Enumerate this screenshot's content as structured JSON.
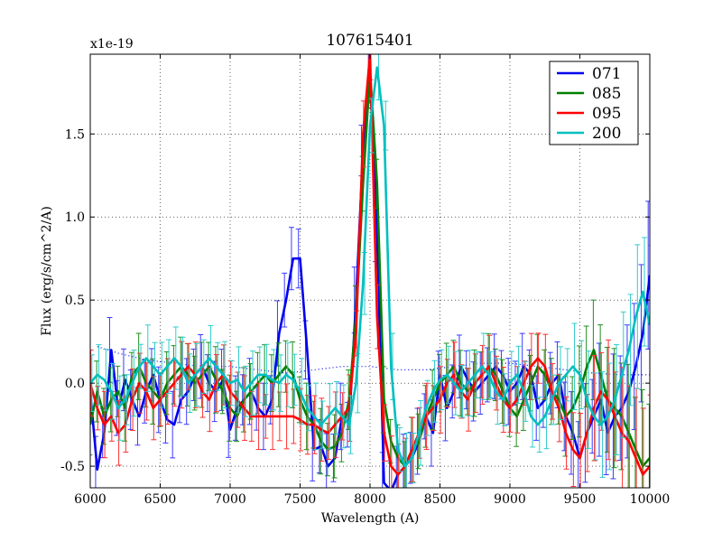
{
  "chart_data": {
    "type": "line",
    "title": "107615401",
    "xlabel": "Wavelength (A)",
    "ylabel": "Flux (erg/s/cm^2/A)",
    "y_offset_label": "x1e-19",
    "xlim": [
      6000,
      10000
    ],
    "ylim": [
      -0.63,
      1.98
    ],
    "xticks": [
      6000,
      6500,
      7000,
      7500,
      8000,
      8500,
      9000,
      9500,
      10000
    ],
    "xtick_labels": [
      "6000",
      "6500",
      "7000",
      "7500",
      "8000",
      "8500",
      "9000",
      "9500",
      "10000"
    ],
    "yticks": [
      -0.5,
      0.0,
      0.5,
      1.0,
      1.5
    ],
    "ytick_labels": [
      "-0.5",
      "0.0",
      "0.5",
      "1.0",
      "1.5"
    ],
    "grid": true,
    "legend": "top-right",
    "x": [
      6000,
      6050,
      6100,
      6150,
      6200,
      6250,
      6300,
      6350,
      6400,
      6450,
      6500,
      6550,
      6600,
      6650,
      6700,
      6750,
      6800,
      6850,
      6900,
      6950,
      7000,
      7050,
      7100,
      7150,
      7200,
      7250,
      7300,
      7350,
      7400,
      7450,
      7500,
      7550,
      7600,
      7650,
      7700,
      7750,
      7800,
      7850,
      7900,
      7950,
      8000,
      8050,
      8100,
      8150,
      8200,
      8250,
      8300,
      8350,
      8400,
      8450,
      8500,
      8550,
      8600,
      8650,
      8700,
      8750,
      8800,
      8850,
      8900,
      8950,
      9000,
      9050,
      9100,
      9150,
      9200,
      9250,
      9300,
      9350,
      9400,
      9450,
      9500,
      9550,
      9600,
      9650,
      9700,
      9750,
      9800,
      9850,
      9900,
      9950,
      10000
    ],
    "series": [
      {
        "name": "071",
        "color": "#0000ee",
        "values": [
          -0.05,
          -0.52,
          -0.3,
          0.2,
          -0.15,
          0.02,
          -0.1,
          -0.2,
          -0.05,
          0.05,
          -0.1,
          -0.22,
          -0.25,
          -0.1,
          -0.05,
          0.05,
          0.1,
          0.0,
          -0.05,
          0.02,
          -0.28,
          -0.15,
          -0.1,
          -0.05,
          -0.15,
          -0.2,
          -0.1,
          0.3,
          0.5,
          0.75,
          0.75,
          0.2,
          -0.4,
          -0.38,
          -0.5,
          -0.45,
          -0.2,
          -0.25,
          0.5,
          1.4,
          1.85,
          0.9,
          -0.6,
          -0.65,
          -0.55,
          -0.5,
          -0.45,
          -0.35,
          -0.2,
          -0.3,
          0.05,
          -0.15,
          -0.05,
          0.1,
          0.02,
          -0.05,
          0.0,
          0.05,
          0.1,
          0.05,
          -0.05,
          0.0,
          0.1,
          0.05,
          -0.15,
          -0.1,
          0.0,
          0.05,
          -0.2,
          -0.3,
          -0.45,
          -0.3,
          -0.2,
          -0.1,
          -0.3,
          -0.2,
          -0.15,
          -0.05,
          0.1,
          0.3,
          0.65
        ]
      },
      {
        "name": "085",
        "color": "#008000",
        "values": [
          -0.25,
          -0.05,
          -0.2,
          -0.1,
          -0.05,
          -0.15,
          0.05,
          0.1,
          0.0,
          -0.05,
          -0.1,
          0.0,
          0.05,
          0.1,
          0.05,
          0.0,
          0.05,
          0.1,
          0.02,
          -0.05,
          -0.15,
          -0.2,
          -0.1,
          -0.05,
          0.0,
          0.05,
          0.0,
          0.05,
          0.1,
          0.05,
          -0.1,
          -0.2,
          -0.25,
          -0.35,
          -0.4,
          -0.38,
          -0.3,
          -0.1,
          0.4,
          1.2,
          1.88,
          1.2,
          -0.1,
          -0.35,
          -0.45,
          -0.5,
          -0.4,
          -0.35,
          -0.2,
          -0.1,
          0.0,
          0.05,
          0.1,
          0.0,
          -0.05,
          0.0,
          0.05,
          0.1,
          0.05,
          -0.05,
          -0.15,
          -0.2,
          -0.1,
          0.0,
          0.1,
          0.05,
          -0.05,
          -0.1,
          -0.2,
          -0.15,
          -0.05,
          0.1,
          0.2,
          0.05,
          -0.1,
          -0.15,
          -0.2,
          -0.3,
          -0.4,
          -0.5,
          -0.45
        ]
      },
      {
        "name": "095",
        "color": "#ff0000",
        "values": [
          0.0,
          -0.15,
          -0.25,
          -0.2,
          -0.3,
          -0.25,
          -0.1,
          0.0,
          -0.05,
          -0.15,
          -0.1,
          -0.05,
          0.0,
          0.05,
          0.1,
          0.05,
          -0.05,
          -0.1,
          0.0,
          0.05,
          -0.05,
          -0.1,
          -0.15,
          -0.2,
          -0.2,
          -0.2,
          -0.2,
          -0.2,
          -0.2,
          -0.2,
          -0.22,
          -0.25,
          -0.25,
          -0.28,
          -0.3,
          -0.25,
          -0.2,
          -0.15,
          0.3,
          1.5,
          1.98,
          0.4,
          -0.3,
          -0.5,
          -0.55,
          -0.5,
          -0.4,
          -0.3,
          -0.2,
          -0.15,
          -0.1,
          0.0,
          0.05,
          -0.05,
          -0.1,
          0.0,
          0.05,
          0.1,
          0.0,
          -0.1,
          -0.15,
          -0.1,
          0.0,
          0.1,
          0.15,
          0.1,
          -0.05,
          -0.15,
          -0.3,
          -0.4,
          -0.45,
          -0.3,
          -0.15,
          -0.05,
          -0.1,
          -0.2,
          -0.3,
          -0.35,
          -0.45,
          -0.55,
          -0.5
        ]
      },
      {
        "name": "200",
        "color": "#00bfbf",
        "values": [
          0.0,
          0.05,
          0.02,
          -0.05,
          -0.15,
          -0.1,
          0.0,
          0.1,
          0.15,
          0.1,
          0.05,
          0.1,
          0.15,
          0.1,
          0.0,
          0.05,
          0.1,
          0.15,
          0.1,
          0.05,
          0.0,
          0.02,
          -0.05,
          0.0,
          0.05,
          0.05,
          0.02,
          0.0,
          0.05,
          0.02,
          -0.05,
          -0.15,
          -0.2,
          -0.25,
          -0.2,
          -0.15,
          -0.2,
          -0.25,
          0.0,
          0.6,
          1.55,
          1.9,
          1.55,
          0.1,
          -0.4,
          -0.5,
          -0.45,
          -0.3,
          -0.15,
          -0.05,
          0.02,
          0.05,
          0.0,
          -0.05,
          0.0,
          0.05,
          0.1,
          0.05,
          -0.05,
          -0.1,
          0.0,
          0.05,
          -0.05,
          -0.2,
          -0.25,
          -0.2,
          -0.1,
          0.0,
          0.05,
          0.1,
          0.05,
          -0.1,
          -0.2,
          -0.25,
          -0.2,
          -0.1,
          0.05,
          0.2,
          0.4,
          0.55,
          0.35
        ]
      }
    ],
    "sky_reference": {
      "style": "dotted",
      "color": "#0000ee",
      "x": [
        6050,
        6200,
        6400,
        6600,
        6800,
        7000,
        7200,
        7400,
        7600,
        7800,
        8000,
        8200,
        8400,
        8600,
        8800,
        9000,
        9200,
        9400,
        9600,
        9800,
        10000
      ],
      "values": [
        0.22,
        0.18,
        0.14,
        0.12,
        0.1,
        0.1,
        0.08,
        0.06,
        0.08,
        0.1,
        0.1,
        0.08,
        0.08,
        0.1,
        0.12,
        0.12,
        0.1,
        0.08,
        0.06,
        0.05,
        0.05
      ]
    }
  }
}
